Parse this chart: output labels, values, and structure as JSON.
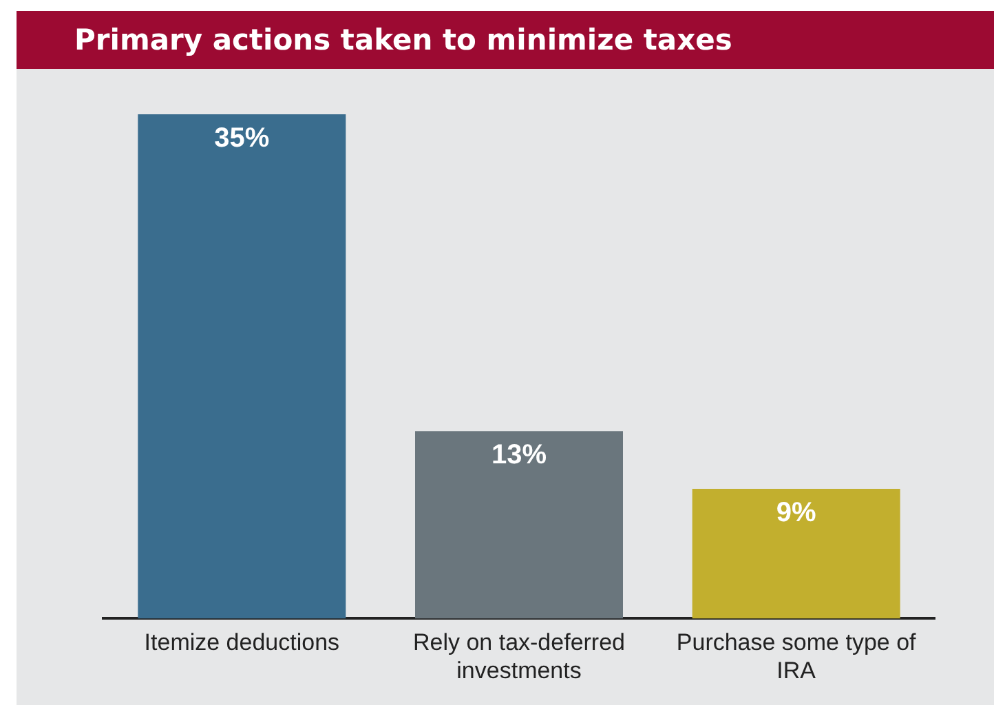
{
  "chart_data": {
    "type": "bar",
    "title": "Primary actions taken to minimize taxes",
    "categories": [
      "Itemize deductions",
      "Rely on tax-deferred investments",
      "Purchase some type of IRA"
    ],
    "values": [
      35,
      13,
      9
    ],
    "colors": [
      "#3a6d8e",
      "#6a767d",
      "#c2af2e"
    ],
    "value_labels": [
      "35%",
      "13%",
      "9%"
    ],
    "ylim": [
      0,
      35
    ],
    "relative": false,
    "grid": false,
    "legend": false
  }
}
